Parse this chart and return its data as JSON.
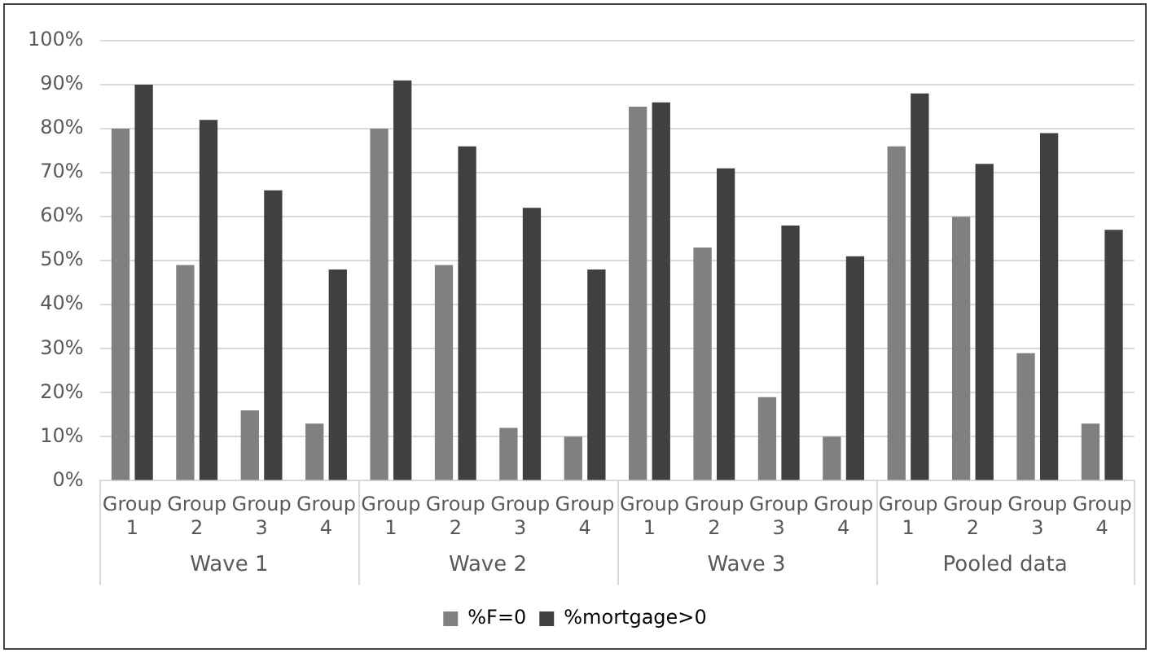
{
  "chart_data": {
    "type": "bar",
    "categories": [
      "Group 1",
      "Group 2",
      "Group 3",
      "Group 4",
      "Group 1",
      "Group 2",
      "Group 3",
      "Group 4",
      "Group 1",
      "Group 2",
      "Group 3",
      "Group 4",
      "Group 1",
      "Group 2",
      "Group 3",
      "Group 4"
    ],
    "annotations": [
      "Wave 1",
      "Wave 2",
      "Wave 3",
      "Pooled data"
    ],
    "series": [
      {
        "name": "%F=0",
        "color": "#808080",
        "values": [
          80,
          49,
          16,
          13,
          80,
          49,
          12,
          10,
          85,
          53,
          19,
          10,
          76,
          60,
          29,
          13
        ]
      },
      {
        "name": "%mortgage>0",
        "color": "#404040",
        "values": [
          90,
          82,
          66,
          48,
          91,
          76,
          62,
          48,
          86,
          71,
          58,
          51,
          88,
          72,
          79,
          57
        ]
      }
    ],
    "ylim": [
      0,
      100
    ],
    "yticks": [
      {
        "value": 0,
        "label": "0%"
      },
      {
        "value": 10,
        "label": "10%"
      },
      {
        "value": 20,
        "label": "20%"
      },
      {
        "value": 30,
        "label": "30%"
      },
      {
        "value": 40,
        "label": "40%"
      },
      {
        "value": 50,
        "label": "50%"
      },
      {
        "value": 60,
        "label": "60%"
      },
      {
        "value": 70,
        "label": "70%"
      },
      {
        "value": 80,
        "label": "80%"
      },
      {
        "value": 90,
        "label": "90%"
      },
      {
        "value": 100,
        "label": "100%"
      }
    ],
    "grid": "y",
    "legend": "bottom"
  }
}
